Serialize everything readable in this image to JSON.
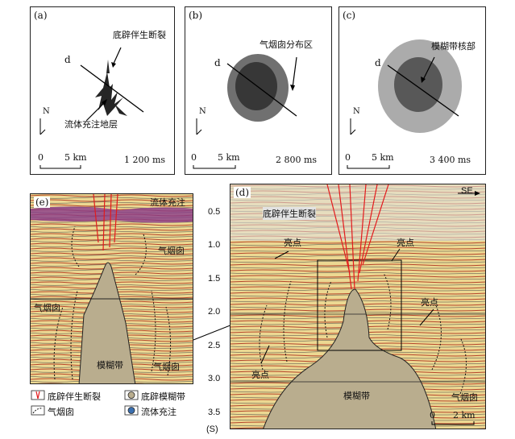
{
  "panel_a": {
    "label": "(a)",
    "line_label": "d",
    "annotation_top": "底辟伴生断裂",
    "annotation_bottom": "流体充注地层",
    "north": "N",
    "scale": {
      "zero": "0",
      "value": "5 km"
    },
    "time": "1 200 ms"
  },
  "panel_b": {
    "label": "(b)",
    "line_label": "d",
    "annotation": "气烟囱分布区",
    "north": "N",
    "scale": {
      "zero": "0",
      "value": "5 km"
    },
    "time": "2 800 ms"
  },
  "panel_c": {
    "label": "(c)",
    "line_label": "d",
    "annotation": "模糊带核部",
    "north": "N",
    "scale": {
      "zero": "0",
      "value": "5 km"
    },
    "time": "3 400 ms"
  },
  "panel_e": {
    "label": "(e)",
    "fluid_fill": "流体充注",
    "chimney_right_top": "气烟囱",
    "chimney_left": "气烟囱",
    "chimney_right_bottom": "气烟囱",
    "blur_zone": "模糊带"
  },
  "panel_d": {
    "label": "(d)",
    "direction": "SE",
    "diapir_fault": "底辟伴生断裂",
    "bright_left": "亮点",
    "bright_right": "亮点",
    "bright_right_mid": "亮点",
    "bright_bottom": "亮点",
    "blur_zone": "模糊带",
    "chimney": "气烟囱",
    "scale": {
      "zero": "0",
      "value": "2 km"
    },
    "y_ticks": [
      "0.5",
      "1.0",
      "1.5",
      "2.0",
      "2.5",
      "3.0",
      "3.5"
    ],
    "y_unit": "(S)"
  },
  "legend": {
    "fault": "底辟伴生断裂",
    "blur": "底辟模糊带",
    "chimney": "气烟囱",
    "fluid": "流体充注"
  }
}
